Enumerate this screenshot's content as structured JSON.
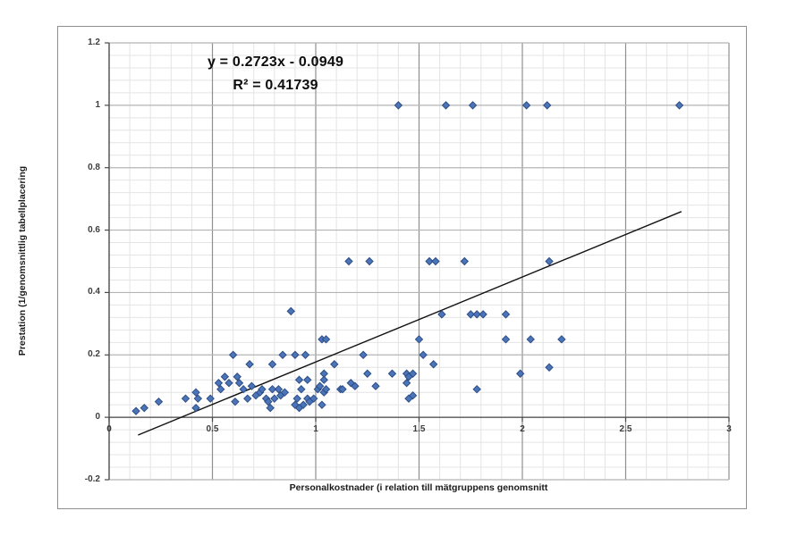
{
  "chart_data": {
    "type": "scatter",
    "equation_line1": "y = 0.2723x - 0.0949",
    "equation_line2": "R² = 0.41739",
    "xlabel": "Personalkostnader (i relation till mätgruppens genomsnitt",
    "ylabel": "Prestation (1/genomsnittlig tabellplacering",
    "xlim": [
      0,
      3
    ],
    "ylim": [
      -0.2,
      1.2
    ],
    "x_major": 0.5,
    "x_minor": 0.1,
    "y_major": 0.2,
    "y_minor": 0.04,
    "x_ticks": [
      {
        "v": 0,
        "label": "0"
      },
      {
        "v": 0.5,
        "label": "0.5"
      },
      {
        "v": 1,
        "label": "1"
      },
      {
        "v": 1.5,
        "label": "1.5"
      },
      {
        "v": 2,
        "label": "2"
      },
      {
        "v": 2.5,
        "label": "2.5"
      },
      {
        "v": 3,
        "label": "3"
      }
    ],
    "y_ticks": [
      {
        "v": -0.2,
        "label": "-0.2"
      },
      {
        "v": 0,
        "label": "0"
      },
      {
        "v": 0.2,
        "label": "0.2"
      },
      {
        "v": 0.4,
        "label": "0.4"
      },
      {
        "v": 0.6,
        "label": "0.6"
      },
      {
        "v": 0.8,
        "label": "0.8"
      },
      {
        "v": 1,
        "label": "1"
      },
      {
        "v": 1.2,
        "label": "1.2"
      }
    ],
    "grid": "major+minor",
    "legend": "none",
    "trendline": {
      "slope": 0.2723,
      "intercept": -0.0949,
      "x_start": 0.14,
      "x_end": 2.77
    },
    "marker": {
      "shape": "diamond",
      "size": 8
    },
    "colors": {
      "marker_fill": "#4c74b9",
      "marker_stroke": "#2d4e85",
      "grid_minor": "#e4e4e4",
      "grid_major_h": "#b4b4b4",
      "grid_major_v": "#8f8f8f",
      "axis": "#4a4a4a",
      "trendline": "#111111"
    },
    "points": [
      [
        1.4,
        1.0
      ],
      [
        1.63,
        1.0
      ],
      [
        1.76,
        1.0
      ],
      [
        2.02,
        1.0
      ],
      [
        2.12,
        1.0
      ],
      [
        2.76,
        1.0
      ],
      [
        1.16,
        0.5
      ],
      [
        1.26,
        0.5
      ],
      [
        1.55,
        0.5
      ],
      [
        1.58,
        0.5
      ],
      [
        1.72,
        0.5
      ],
      [
        2.13,
        0.5
      ],
      [
        0.88,
        0.34
      ],
      [
        1.61,
        0.33
      ],
      [
        1.75,
        0.33
      ],
      [
        1.78,
        0.33
      ],
      [
        1.81,
        0.33
      ],
      [
        1.92,
        0.33
      ],
      [
        1.03,
        0.25
      ],
      [
        1.05,
        0.25
      ],
      [
        1.5,
        0.25
      ],
      [
        1.92,
        0.25
      ],
      [
        2.04,
        0.25
      ],
      [
        2.19,
        0.25
      ],
      [
        0.6,
        0.2
      ],
      [
        0.84,
        0.2
      ],
      [
        0.9,
        0.2
      ],
      [
        0.95,
        0.2
      ],
      [
        1.23,
        0.2
      ],
      [
        1.52,
        0.2
      ],
      [
        0.68,
        0.17
      ],
      [
        0.79,
        0.17
      ],
      [
        1.09,
        0.17
      ],
      [
        1.57,
        0.17
      ],
      [
        2.13,
        0.16
      ],
      [
        1.04,
        0.14
      ],
      [
        1.25,
        0.14
      ],
      [
        1.37,
        0.14
      ],
      [
        1.44,
        0.14
      ],
      [
        1.47,
        0.14
      ],
      [
        1.99,
        0.14
      ],
      [
        1.29,
        0.1
      ],
      [
        1.44,
        0.11
      ],
      [
        1.45,
        0.13
      ],
      [
        1.45,
        0.06
      ],
      [
        1.47,
        0.07
      ],
      [
        1.78,
        0.09
      ],
      [
        0.13,
        0.02
      ],
      [
        0.17,
        0.03
      ],
      [
        0.24,
        0.05
      ],
      [
        0.37,
        0.06
      ],
      [
        0.42,
        0.08
      ],
      [
        0.43,
        0.06
      ],
      [
        0.42,
        0.03
      ],
      [
        0.49,
        0.06
      ],
      [
        0.53,
        0.11
      ],
      [
        0.54,
        0.09
      ],
      [
        0.56,
        0.13
      ],
      [
        0.58,
        0.11
      ],
      [
        0.61,
        0.05
      ],
      [
        0.62,
        0.13
      ],
      [
        0.63,
        0.11
      ],
      [
        0.65,
        0.09
      ],
      [
        0.67,
        0.06
      ],
      [
        0.69,
        0.1
      ],
      [
        0.71,
        0.07
      ],
      [
        0.73,
        0.08
      ],
      [
        0.74,
        0.09
      ],
      [
        0.76,
        0.06
      ],
      [
        0.77,
        0.05
      ],
      [
        0.78,
        0.03
      ],
      [
        0.79,
        0.09
      ],
      [
        0.8,
        0.06
      ],
      [
        0.82,
        0.09
      ],
      [
        0.83,
        0.07
      ],
      [
        0.85,
        0.08
      ],
      [
        0.9,
        0.04
      ],
      [
        0.91,
        0.06
      ],
      [
        0.92,
        0.03
      ],
      [
        0.92,
        0.12
      ],
      [
        0.93,
        0.09
      ],
      [
        0.94,
        0.04
      ],
      [
        0.96,
        0.06
      ],
      [
        0.96,
        0.12
      ],
      [
        0.97,
        0.05
      ],
      [
        0.99,
        0.06
      ],
      [
        1.01,
        0.09
      ],
      [
        1.02,
        0.1
      ],
      [
        1.03,
        0.04
      ],
      [
        1.04,
        0.08
      ],
      [
        1.04,
        0.12
      ],
      [
        1.05,
        0.09
      ],
      [
        1.12,
        0.09
      ],
      [
        1.13,
        0.09
      ],
      [
        1.17,
        0.11
      ],
      [
        1.19,
        0.1
      ]
    ]
  }
}
